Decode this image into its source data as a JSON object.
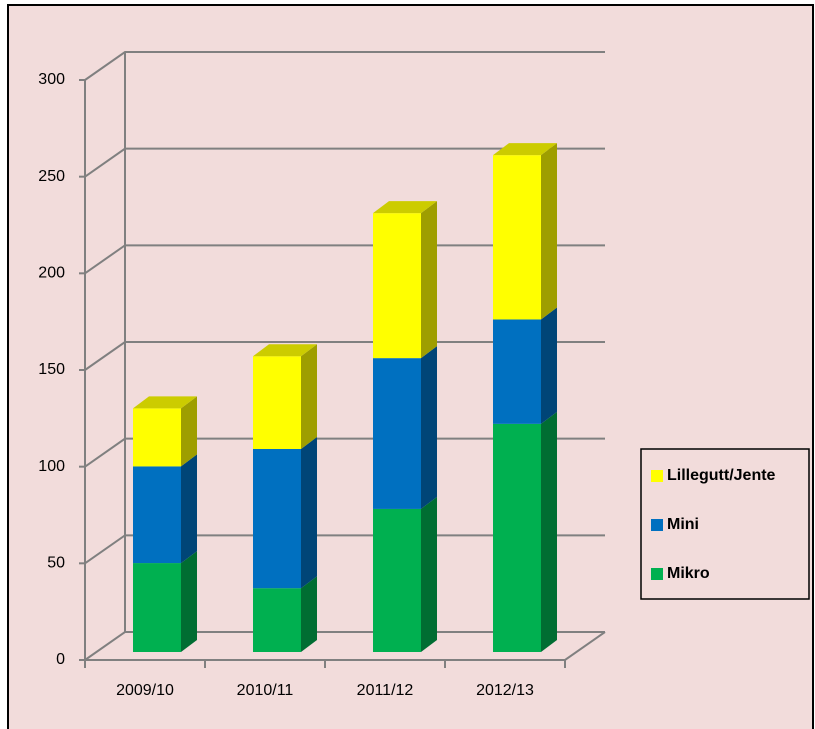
{
  "chart_data": {
    "type": "bar3d_stacked",
    "categories": [
      "2009/10",
      "2010/11",
      "2011/12",
      "2012/13"
    ],
    "series": [
      {
        "name": "Mikro",
        "color": "#00b050",
        "values": [
          46,
          33,
          74,
          118
        ]
      },
      {
        "name": "Mini",
        "color": "#0070c0",
        "values": [
          50,
          72,
          78,
          54
        ]
      },
      {
        "name": "Lillegutt/Jente",
        "color": "#ffff00",
        "values": [
          30,
          48,
          75,
          85
        ]
      }
    ],
    "ylim": [
      0,
      300
    ],
    "yticks": [
      0,
      50,
      100,
      150,
      200,
      250,
      300
    ],
    "grid": true,
    "legend": "right"
  }
}
